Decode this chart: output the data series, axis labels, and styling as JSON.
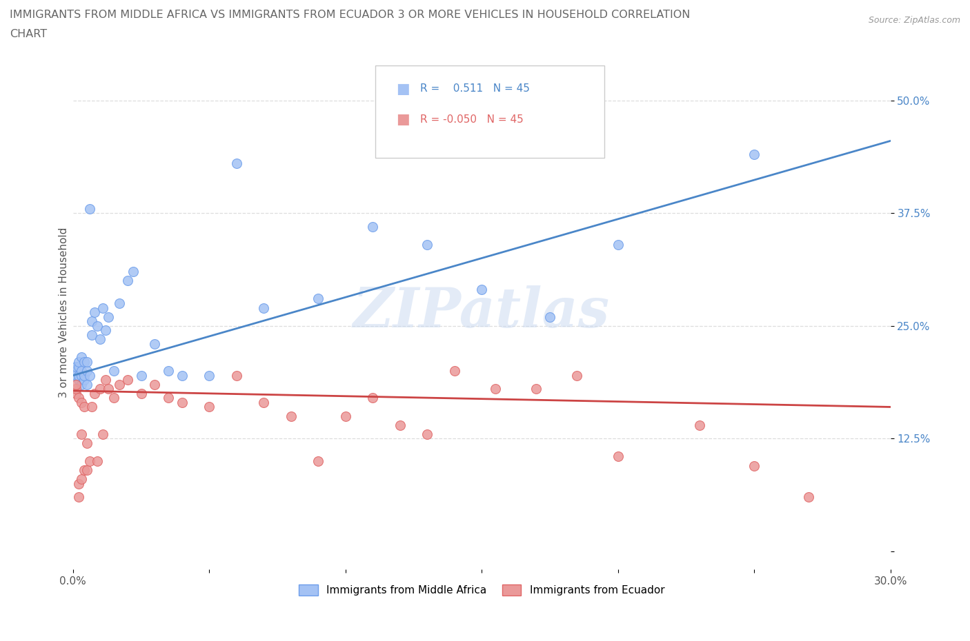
{
  "title_line1": "IMMIGRANTS FROM MIDDLE AFRICA VS IMMIGRANTS FROM ECUADOR 3 OR MORE VEHICLES IN HOUSEHOLD CORRELATION",
  "title_line2": "CHART",
  "source_text": "Source: ZipAtlas.com",
  "ylabel": "3 or more Vehicles in Household",
  "xlim": [
    0.0,
    0.3
  ],
  "ylim": [
    -0.02,
    0.55
  ],
  "xtick_positions": [
    0.0,
    0.05,
    0.1,
    0.15,
    0.2,
    0.25,
    0.3
  ],
  "xticklabels": [
    "0.0%",
    "",
    "",
    "",
    "",
    "",
    "30.0%"
  ],
  "ytick_positions": [
    0.0,
    0.125,
    0.25,
    0.375,
    0.5
  ],
  "ytick_labels": [
    "",
    "12.5%",
    "25.0%",
    "37.5%",
    "50.0%"
  ],
  "blue_color": "#a4c2f4",
  "blue_edge_color": "#6d9eeb",
  "pink_color": "#ea9999",
  "pink_edge_color": "#e06666",
  "blue_line_color": "#4a86c8",
  "pink_line_color": "#cc4444",
  "watermark_text": "ZIPatlas",
  "blue_scatter_x": [
    0.001,
    0.001,
    0.001,
    0.002,
    0.002,
    0.002,
    0.002,
    0.003,
    0.003,
    0.003,
    0.003,
    0.004,
    0.004,
    0.004,
    0.005,
    0.005,
    0.005,
    0.006,
    0.006,
    0.007,
    0.007,
    0.008,
    0.009,
    0.01,
    0.011,
    0.012,
    0.013,
    0.015,
    0.017,
    0.02,
    0.022,
    0.025,
    0.03,
    0.035,
    0.04,
    0.05,
    0.06,
    0.07,
    0.09,
    0.11,
    0.13,
    0.15,
    0.175,
    0.2,
    0.25
  ],
  "blue_scatter_y": [
    0.195,
    0.2,
    0.205,
    0.19,
    0.195,
    0.205,
    0.21,
    0.185,
    0.195,
    0.2,
    0.215,
    0.19,
    0.195,
    0.21,
    0.185,
    0.2,
    0.21,
    0.38,
    0.195,
    0.255,
    0.24,
    0.265,
    0.25,
    0.235,
    0.27,
    0.245,
    0.26,
    0.2,
    0.275,
    0.3,
    0.31,
    0.195,
    0.23,
    0.2,
    0.195,
    0.195,
    0.43,
    0.27,
    0.28,
    0.36,
    0.34,
    0.29,
    0.26,
    0.34,
    0.44
  ],
  "pink_scatter_x": [
    0.001,
    0.001,
    0.001,
    0.002,
    0.002,
    0.002,
    0.003,
    0.003,
    0.003,
    0.004,
    0.004,
    0.005,
    0.005,
    0.006,
    0.007,
    0.008,
    0.009,
    0.01,
    0.011,
    0.012,
    0.013,
    0.015,
    0.017,
    0.02,
    0.025,
    0.03,
    0.035,
    0.04,
    0.05,
    0.06,
    0.07,
    0.08,
    0.09,
    0.1,
    0.11,
    0.12,
    0.13,
    0.14,
    0.155,
    0.17,
    0.185,
    0.2,
    0.23,
    0.25,
    0.27
  ],
  "pink_scatter_y": [
    0.175,
    0.18,
    0.185,
    0.06,
    0.075,
    0.17,
    0.08,
    0.13,
    0.165,
    0.09,
    0.16,
    0.09,
    0.12,
    0.1,
    0.16,
    0.175,
    0.1,
    0.18,
    0.13,
    0.19,
    0.18,
    0.17,
    0.185,
    0.19,
    0.175,
    0.185,
    0.17,
    0.165,
    0.16,
    0.195,
    0.165,
    0.15,
    0.1,
    0.15,
    0.17,
    0.14,
    0.13,
    0.2,
    0.18,
    0.18,
    0.195,
    0.105,
    0.14,
    0.095,
    0.06
  ],
  "legend_label_blue": "Immigrants from Middle Africa",
  "legend_label_pink": "Immigrants from Ecuador",
  "grid_color": "#dddddd",
  "background_color": "#ffffff",
  "title_color": "#666666",
  "yaxis_label_color": "#555555",
  "ytick_color": "#4a86c8",
  "xtick_color": "#555555",
  "source_color": "#999999"
}
